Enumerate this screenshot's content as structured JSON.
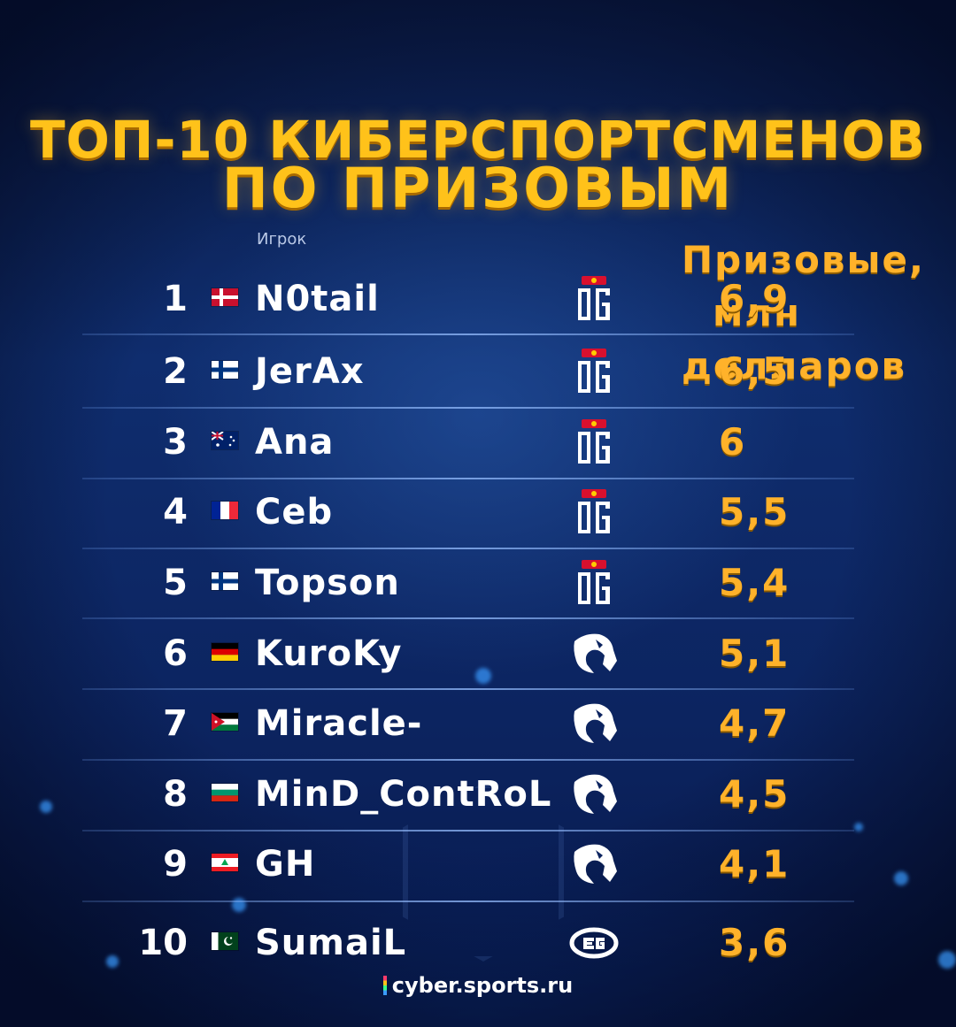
{
  "title": {
    "line1": "ТОП-10 КИБЕРСПОРТСМЕНОВ",
    "line2": "ПО ПРИЗОВЫМ"
  },
  "headers": {
    "player": "Игрок",
    "prize_line1": "Призовые,",
    "prize_line2": "млн долларов"
  },
  "rows": [
    {
      "rank": "1",
      "name": "N0tail",
      "flag": "denmark-flag",
      "team_logo": "og-logo",
      "prize": "6,9"
    },
    {
      "rank": "2",
      "name": "JerAx",
      "flag": "finland-flag",
      "team_logo": "og-logo",
      "prize": "6,5"
    },
    {
      "rank": "3",
      "name": "Ana",
      "flag": "australia-flag",
      "team_logo": "og-logo",
      "prize": "6"
    },
    {
      "rank": "4",
      "name": "Ceb",
      "flag": "france-flag",
      "team_logo": "og-logo",
      "prize": "5,5"
    },
    {
      "rank": "5",
      "name": "Topson",
      "flag": "finland-flag",
      "team_logo": "og-logo",
      "prize": "5,4"
    },
    {
      "rank": "6",
      "name": "KuroKy",
      "flag": "germany-flag",
      "team_logo": "team-liquid-logo",
      "prize": "5,1"
    },
    {
      "rank": "7",
      "name": "Miracle-",
      "flag": "jordan-flag",
      "team_logo": "team-liquid-logo",
      "prize": "4,7"
    },
    {
      "rank": "8",
      "name": "MinD_ContRoL",
      "flag": "bulgaria-flag",
      "team_logo": "team-liquid-logo",
      "prize": "4,5"
    },
    {
      "rank": "9",
      "name": "GH",
      "flag": "lebanon-flag",
      "team_logo": "team-liquid-logo",
      "prize": "4,1"
    },
    {
      "rank": "10",
      "name": "SumaiL",
      "flag": "pakistan-flag",
      "team_logo": "evil-geniuses-logo",
      "prize": "3,6"
    }
  ],
  "footer": {
    "site": "cyber.sports.ru"
  },
  "colors": {
    "title": "#ffc21a",
    "prize": "#ffb22a",
    "background": "#0f2d6e"
  }
}
